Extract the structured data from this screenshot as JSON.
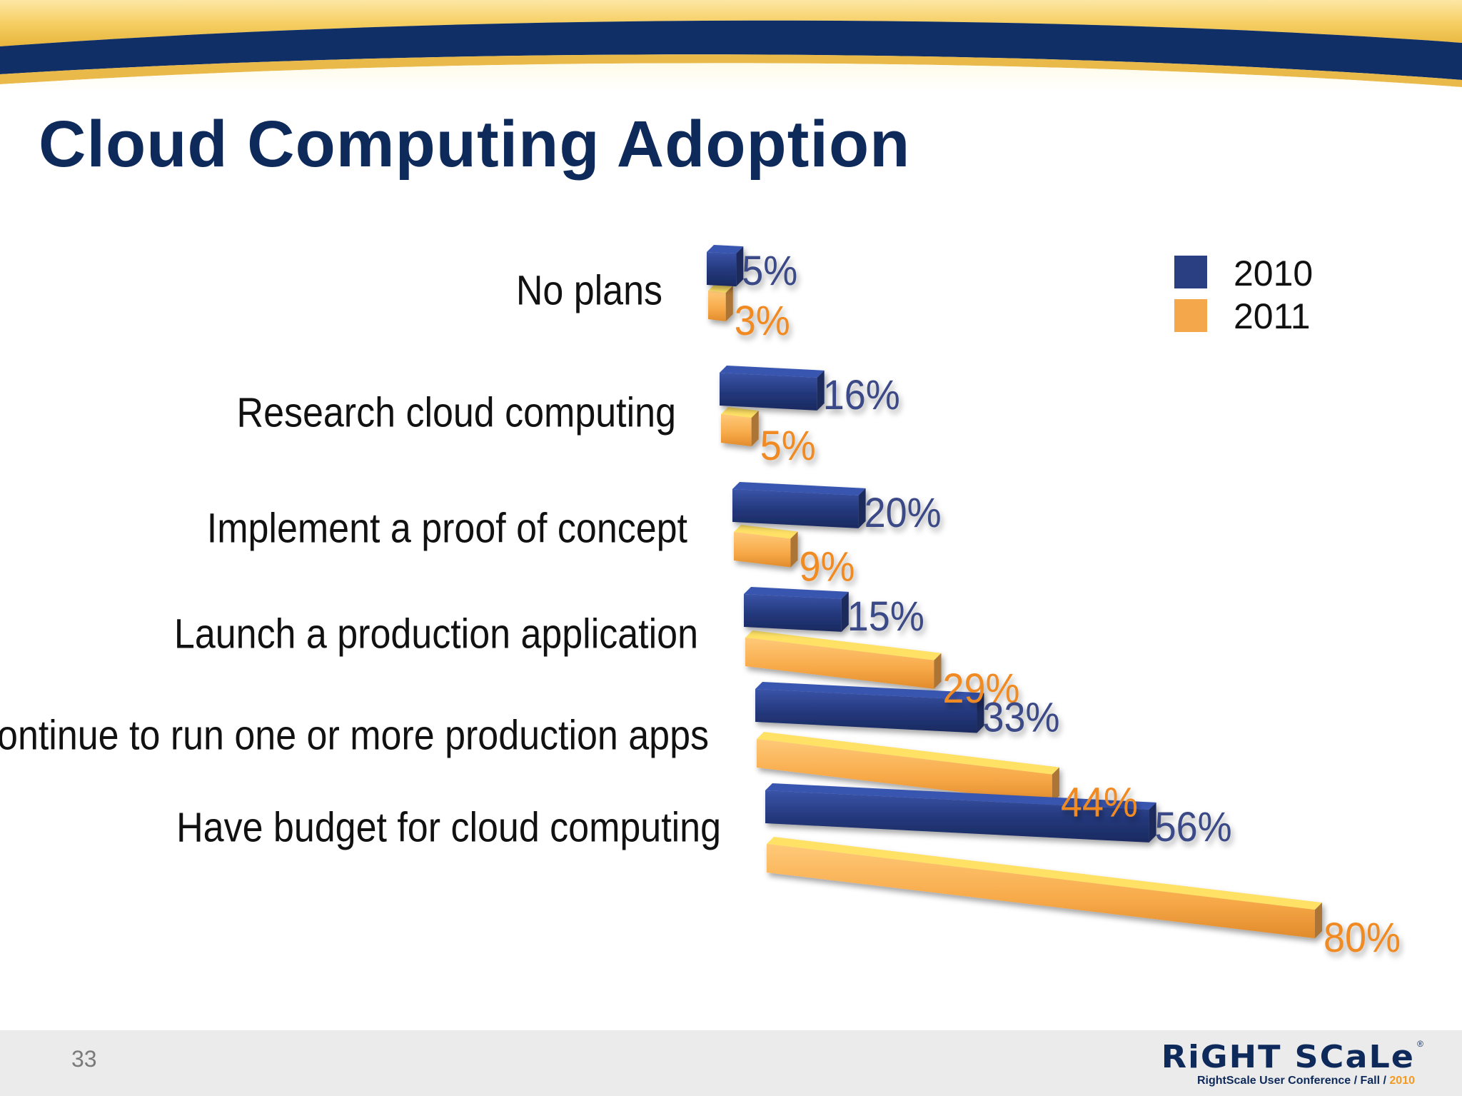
{
  "slide": {
    "title": "Cloud Computing Adoption",
    "page_number": "33"
  },
  "logo": {
    "wordmark": "RiGHT SCaLe",
    "registered_mark": "®",
    "tagline": "RightScale User Conference / Fall / ",
    "tagline_year": "2010"
  },
  "colors": {
    "series_2010": "#2a3f82",
    "series_2010_label": "#3a4a86",
    "series_2011": "#f5a74b",
    "series_2011_label": "#f08a24",
    "title": "#0e2a5b",
    "header_navy": "#0f2f66",
    "header_gold": "#f3c85a"
  },
  "chart_data": {
    "type": "bar",
    "orientation": "horizontal",
    "style": "3d",
    "title": "Cloud Computing Adoption",
    "xlabel": "",
    "ylabel": "",
    "xlim": [
      0,
      80
    ],
    "legend_position": "top-right",
    "categories": [
      "No plans",
      "Research cloud computing",
      "Implement a proof of concept",
      "Launch a production application",
      "Continue to run one or more production apps",
      "Have budget for cloud computing"
    ],
    "series": [
      {
        "name": "2010",
        "values": [
          5,
          16,
          20,
          15,
          33,
          56
        ],
        "labels": [
          "5%",
          "16%",
          "20%",
          "15%",
          "33%",
          "56%"
        ]
      },
      {
        "name": "2011",
        "values": [
          3,
          5,
          9,
          29,
          44,
          80
        ],
        "labels": [
          "3%",
          "5%",
          "9%",
          "29%",
          "44%",
          "80%"
        ]
      }
    ]
  }
}
